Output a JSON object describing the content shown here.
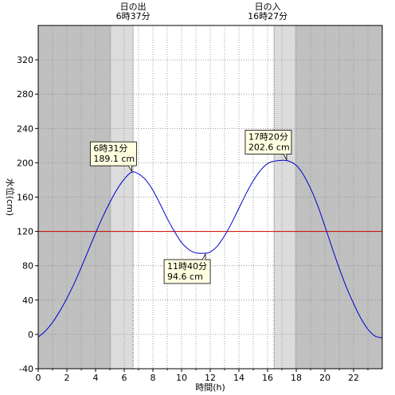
{
  "chart_data": {
    "type": "line",
    "xlabel": "時間(h)",
    "ylabel": "水位(cm)",
    "xlim": [
      0,
      24
    ],
    "ylim": [
      -40,
      360
    ],
    "x_ticks": [
      0,
      2,
      4,
      6,
      8,
      10,
      12,
      14,
      16,
      18,
      20,
      22
    ],
    "y_ticks": [
      -40,
      0,
      40,
      80,
      120,
      160,
      200,
      240,
      280,
      320
    ],
    "grid": true,
    "line_color": "#0000cc",
    "reference_line": {
      "y": 120,
      "color": "#cc0000"
    },
    "night_color": "#c0c0c0",
    "twilight_color": "#dcdcdc",
    "bands": [
      {
        "kind": "night",
        "from": 0,
        "to": 5.1
      },
      {
        "kind": "twilight",
        "from": 5.1,
        "to": 6.62
      },
      {
        "kind": "twilight",
        "from": 16.45,
        "to": 17.9
      },
      {
        "kind": "night",
        "from": 17.9,
        "to": 24
      }
    ],
    "series": [
      {
        "x": [
          0,
          0.5,
          1,
          1.5,
          2,
          2.5,
          3,
          3.5,
          4,
          4.5,
          5,
          5.5,
          6,
          6.52,
          7,
          7.5,
          8,
          8.5,
          9,
          9.5,
          10,
          10.5,
          11,
          11.67,
          12,
          12.5,
          13,
          13.5,
          14,
          14.5,
          15,
          15.5,
          16,
          16.5,
          17.33,
          18,
          18.5,
          19,
          19.5,
          20,
          20.5,
          21,
          21.5,
          22,
          22.5,
          23,
          23.5,
          24
        ],
        "values": [
          -3,
          4,
          14,
          27,
          42,
          59,
          78,
          98,
          118,
          137,
          154,
          169,
          181,
          189.1,
          187,
          180,
          168,
          152,
          135,
          120,
          107,
          99,
          95,
          94.6,
          96,
          103,
          115,
          130,
          147,
          164,
          179,
          191,
          199,
          202,
          202.6,
          197,
          186,
          170,
          150,
          126,
          101,
          77,
          55,
          36,
          19,
          6,
          -2,
          -4
        ]
      }
    ],
    "annotations": [
      {
        "line1": "6時31分",
        "line2": "189.1 cm",
        "x": 6.52,
        "y": 189.1,
        "place": "above"
      },
      {
        "line1": "11時40分",
        "line2": "94.6 cm",
        "x": 11.67,
        "y": 94.6,
        "place": "below"
      },
      {
        "line1": "17時20分",
        "line2": "202.6 cm",
        "x": 17.33,
        "y": 202.6,
        "place": "above"
      }
    ]
  },
  "sun_events": {
    "sunrise": {
      "label": "日の出",
      "time": "6時37分",
      "hour": 6.62
    },
    "sunset": {
      "label": "日の入",
      "time": "16時27分",
      "hour": 16.45
    }
  }
}
